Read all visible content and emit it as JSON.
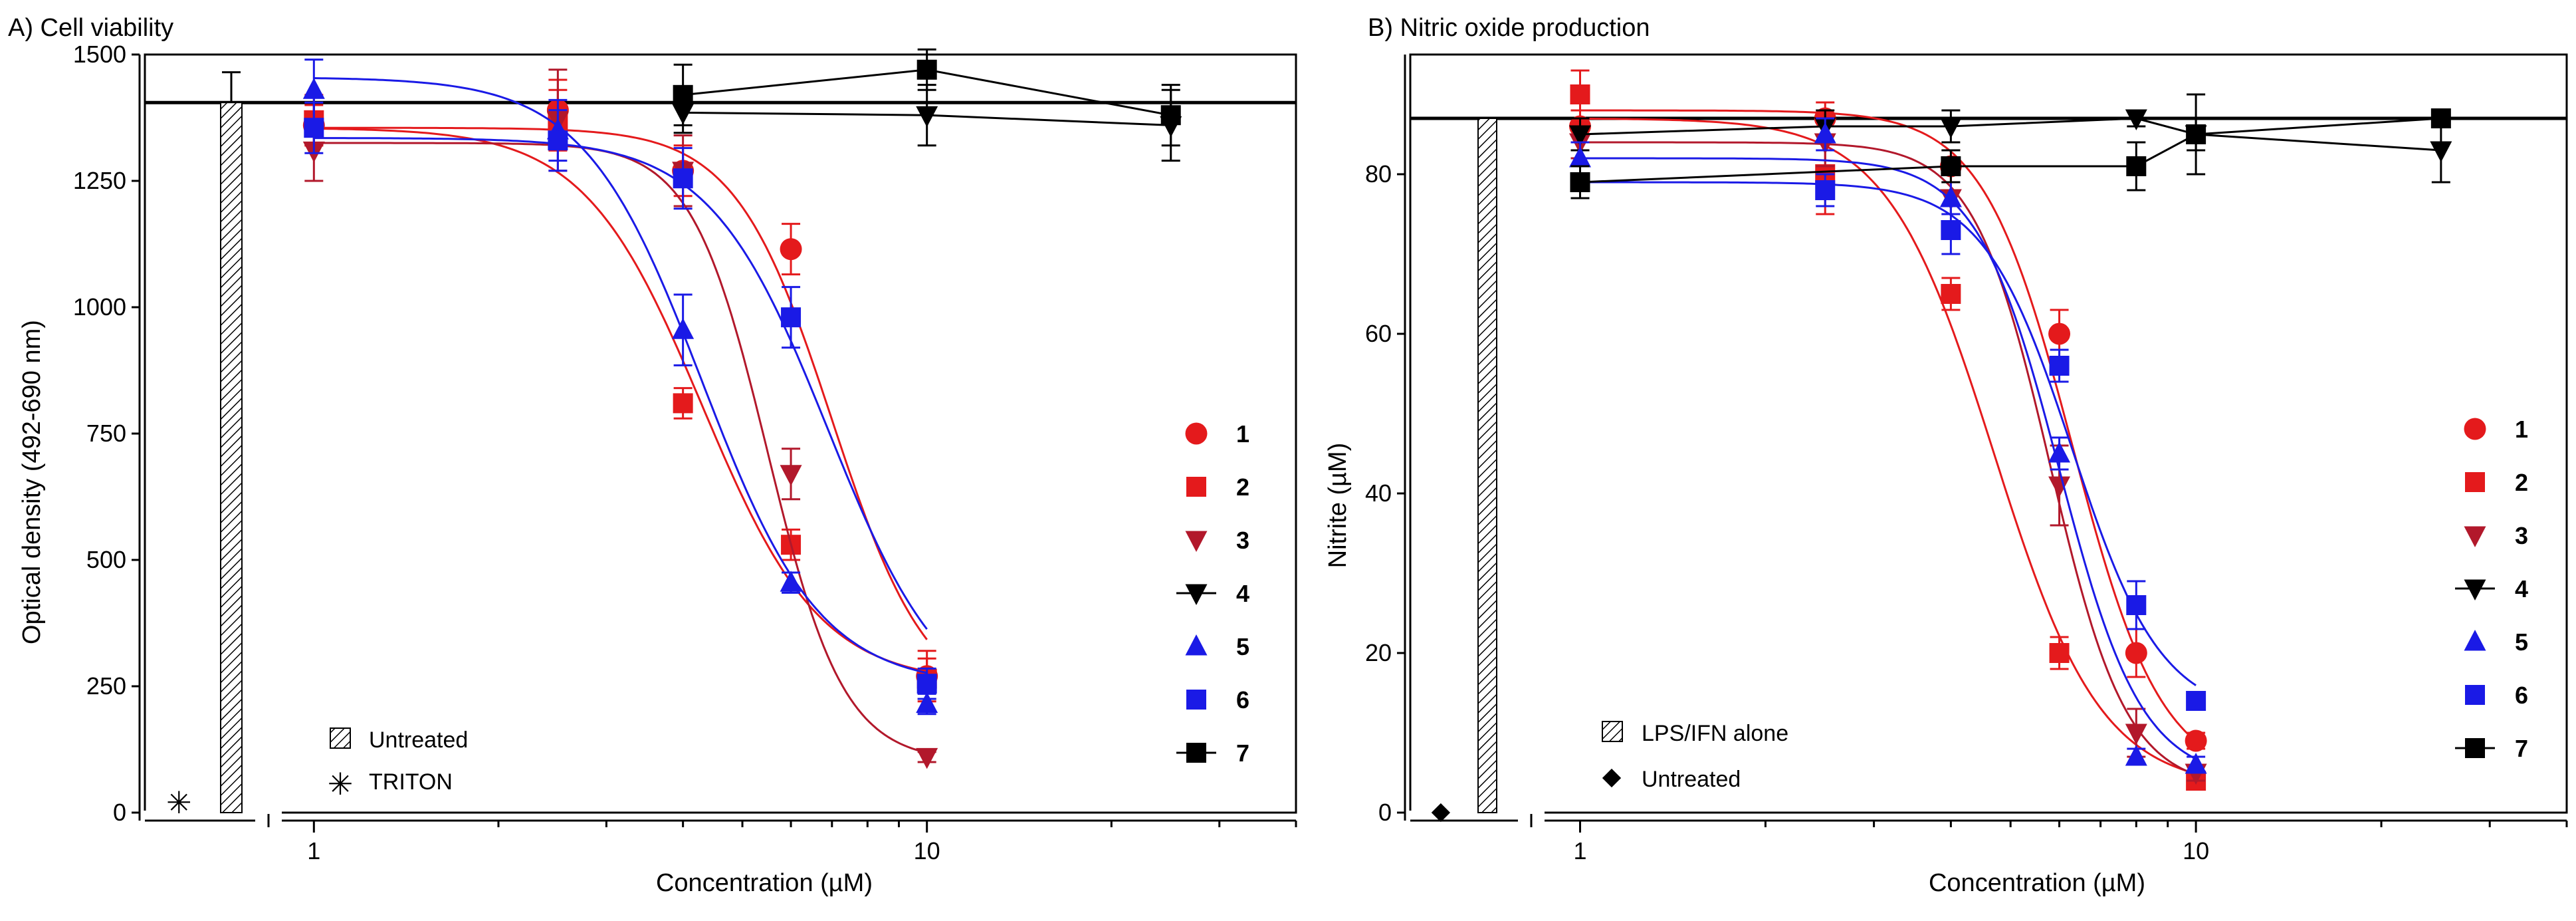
{
  "chart_data": [
    {
      "panel": "A",
      "type": "scatter",
      "title": "A) Cell viability",
      "xlabel": "Concentration (µM)",
      "ylabel": "Optical density (492-690 nm)",
      "xscale": "log",
      "xlim": [
        0.53,
        40
      ],
      "ylim": [
        0,
        1500
      ],
      "xticks": [
        1,
        10
      ],
      "yticks": [
        0,
        250,
        500,
        750,
        1000,
        1250,
        1500
      ],
      "legend_position": "right",
      "reference_line": {
        "y": 1405,
        "label": "Untreated"
      },
      "control_bar": {
        "label": "Untreated",
        "value": 1405,
        "error": 60
      },
      "extra_point": {
        "label": "TRITON",
        "value": 20,
        "symbol": "asterisk"
      },
      "series": [
        {
          "name": "1",
          "color": "#e41a1c",
          "marker": "circle",
          "fit": true,
          "x": [
            1,
            2.5,
            4,
            6,
            10
          ],
          "y": [
            1360,
            1390,
            1270,
            1115,
            270
          ],
          "err": [
            40,
            60,
            50,
            50,
            50
          ],
          "fit_params": {
            "top": 1355,
            "bottom": 200,
            "ic50": 7.0,
            "hill": 5.5
          }
        },
        {
          "name": "2",
          "color": "#e41a1c",
          "marker": "square",
          "fit": true,
          "x": [
            1,
            2.5,
            4,
            6,
            10
          ],
          "y": [
            1370,
            1370,
            810,
            530,
            265
          ],
          "err": [
            50,
            60,
            30,
            30,
            40
          ],
          "fit_params": {
            "top": 1355,
            "bottom": 255,
            "ic50": 4.3,
            "hill": 4.5
          }
        },
        {
          "name": "3",
          "color": "#b2182b",
          "marker": "triangle-down",
          "fit": true,
          "x": [
            1,
            2.5,
            4,
            6,
            10
          ],
          "y": [
            1310,
            1370,
            1270,
            670,
            110
          ],
          "err": [
            60,
            100,
            70,
            50,
            10
          ],
          "fit_params": {
            "top": 1325,
            "bottom": 100,
            "ic50": 5.5,
            "hill": 7
          }
        },
        {
          "name": "4",
          "color": "#000000",
          "marker": "triangle-down",
          "fit": false,
          "x": [
            4,
            10,
            25
          ],
          "y": [
            1385,
            1380,
            1360
          ],
          "err": [
            40,
            60,
            70
          ]
        },
        {
          "name": "5",
          "color": "#1a1ae6",
          "marker": "triangle-up",
          "fit": true,
          "x": [
            1,
            2.5,
            4,
            6,
            10
          ],
          "y": [
            1430,
            1350,
            955,
            455,
            215
          ],
          "err": [
            60,
            60,
            70,
            20,
            20
          ],
          "fit_params": {
            "top": 1455,
            "bottom": 250,
            "ic50": 4.3,
            "hill": 4.5
          }
        },
        {
          "name": "6",
          "color": "#1a1ae6",
          "marker": "square",
          "fit": true,
          "x": [
            1,
            2.5,
            4,
            6,
            10
          ],
          "y": [
            1355,
            1330,
            1255,
            980,
            255
          ],
          "err": [
            50,
            60,
            60,
            60,
            30
          ],
          "fit_params": {
            "top": 1335,
            "bottom": 180,
            "ic50": 6.9,
            "hill": 4.5
          }
        },
        {
          "name": "7",
          "color": "#000000",
          "marker": "square",
          "fit": false,
          "x": [
            4,
            10,
            25
          ],
          "y": [
            1420,
            1470,
            1380
          ],
          "err": [
            60,
            40,
            60
          ]
        }
      ]
    },
    {
      "panel": "B",
      "type": "scatter",
      "title": "B) Nitric oxide production",
      "xlabel": "Concentration (µM)",
      "ylabel": "Nitrite (µM)",
      "xscale": "log",
      "xlim": [
        0.53,
        40
      ],
      "ylim": [
        0,
        95
      ],
      "xticks": [
        1,
        10
      ],
      "yticks": [
        0,
        20,
        40,
        60,
        80
      ],
      "legend_position": "right",
      "reference_line": {
        "y": 87,
        "label": "LPS/IFN alone"
      },
      "control_bar": {
        "label": "LPS/IFN alone",
        "value": 87,
        "error": 0
      },
      "extra_point": {
        "label": "Untreated",
        "value": 0,
        "symbol": "diamond"
      },
      "series": [
        {
          "name": "1",
          "color": "#e41a1c",
          "marker": "circle",
          "fit": true,
          "x": [
            1,
            2.5,
            4,
            6,
            8,
            10
          ],
          "y": [
            86,
            87,
            81,
            60,
            20,
            9
          ],
          "err": [
            2,
            2,
            2,
            3,
            3,
            1
          ],
          "fit_params": {
            "top": 88,
            "bottom": 4,
            "ic50": 6.3,
            "hill": 6
          }
        },
        {
          "name": "2",
          "color": "#e41a1c",
          "marker": "square",
          "fit": true,
          "x": [
            1,
            2.5,
            4,
            6,
            10
          ],
          "y": [
            90,
            80,
            65,
            20,
            4
          ],
          "err": [
            3,
            5,
            2,
            2,
            1
          ],
          "fit_params": {
            "top": 87,
            "bottom": 3,
            "ic50": 4.7,
            "hill": 5
          }
        },
        {
          "name": "3",
          "color": "#b2182b",
          "marker": "triangle-down",
          "fit": true,
          "x": [
            1,
            2.5,
            4,
            6,
            8,
            10
          ],
          "y": [
            84,
            84,
            77,
            41,
            10,
            5
          ],
          "err": [
            2,
            3,
            2,
            5,
            3,
            1
          ],
          "fit_params": {
            "top": 84,
            "bottom": 3,
            "ic50": 5.8,
            "hill": 7
          }
        },
        {
          "name": "4",
          "color": "#000000",
          "marker": "triangle-down",
          "fit": false,
          "x": [
            1,
            2.5,
            4,
            8,
            10,
            25
          ],
          "y": [
            85,
            86,
            86,
            87,
            85,
            83
          ],
          "err": [
            2,
            2,
            2,
            1,
            2,
            4
          ]
        },
        {
          "name": "5",
          "color": "#1a1ae6",
          "marker": "triangle-up",
          "fit": true,
          "x": [
            1,
            2.5,
            4,
            6,
            8,
            10
          ],
          "y": [
            82,
            85,
            77,
            45,
            7,
            6
          ],
          "err": [
            2,
            2,
            2,
            2,
            1,
            1
          ],
          "fit_params": {
            "top": 82,
            "bottom": 4,
            "ic50": 6.0,
            "hill": 6.5
          }
        },
        {
          "name": "6",
          "color": "#1a1ae6",
          "marker": "square",
          "fit": true,
          "x": [
            1,
            2.5,
            4,
            6,
            8,
            10
          ],
          "y": [
            79,
            78,
            73,
            56,
            26,
            14
          ],
          "err": [
            2,
            2,
            3,
            2,
            3,
            1
          ],
          "fit_params": {
            "top": 79,
            "bottom": 12,
            "ic50": 6.3,
            "hill": 6
          }
        },
        {
          "name": "7",
          "color": "#000000",
          "marker": "square",
          "fit": false,
          "x": [
            1,
            4,
            8,
            10,
            25
          ],
          "y": [
            79,
            81,
            81,
            85,
            87
          ],
          "err": [
            2,
            2,
            3,
            5,
            1
          ]
        }
      ]
    }
  ]
}
